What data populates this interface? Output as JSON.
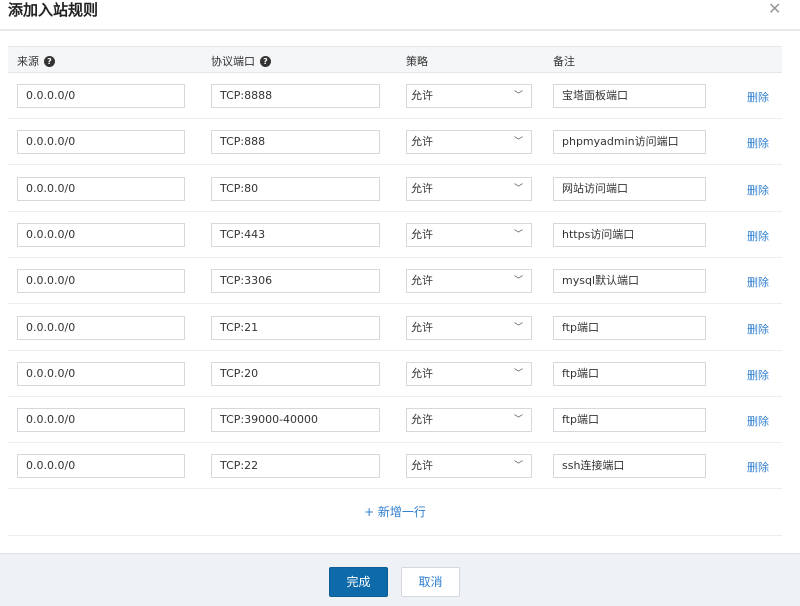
{
  "dialog": {
    "title": "添加入站规则",
    "close_icon": "close-icon"
  },
  "columns": {
    "source": "来源",
    "port": "协议端口",
    "policy": "策略",
    "note": "备注"
  },
  "rows": [
    {
      "source": "0.0.0.0/0",
      "port": "TCP:8888",
      "policy": "允许",
      "note": "宝塔面板端口",
      "delete": "删除"
    },
    {
      "source": "0.0.0.0/0",
      "port": "TCP:888",
      "policy": "允许",
      "note": "phpmyadmin访问端口",
      "delete": "删除"
    },
    {
      "source": "0.0.0.0/0",
      "port": "TCP:80",
      "policy": "允许",
      "note": "网站访问端口",
      "delete": "删除"
    },
    {
      "source": "0.0.0.0/0",
      "port": "TCP:443",
      "policy": "允许",
      "note": "https访问端口",
      "delete": "删除"
    },
    {
      "source": "0.0.0.0/0",
      "port": "TCP:3306",
      "policy": "允许",
      "note": "mysql默认端口",
      "delete": "删除"
    },
    {
      "source": "0.0.0.0/0",
      "port": "TCP:21",
      "policy": "允许",
      "note": "ftp端口",
      "delete": "删除"
    },
    {
      "source": "0.0.0.0/0",
      "port": "TCP:20",
      "policy": "允许",
      "note": "ftp端口",
      "delete": "删除"
    },
    {
      "source": "0.0.0.0/0",
      "port": "TCP:39000-40000",
      "policy": "允许",
      "note": "ftp端口",
      "delete": "删除"
    },
    {
      "source": "0.0.0.0/0",
      "port": "TCP:22",
      "policy": "允许",
      "note": "ssh连接端口",
      "delete": "删除"
    }
  ],
  "add_row": "+ 新增一行",
  "footer": {
    "ok": "完成",
    "cancel": "取消"
  }
}
